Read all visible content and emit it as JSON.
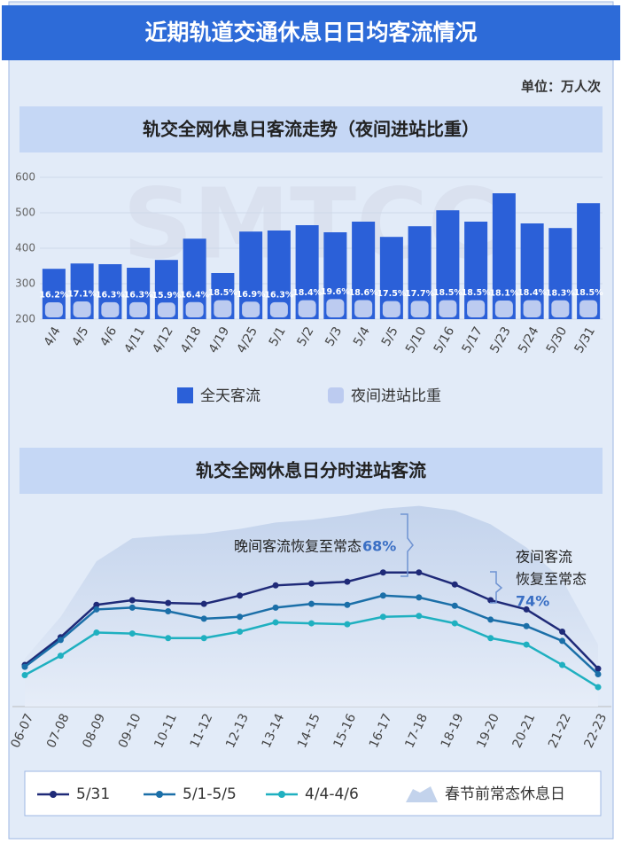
{
  "header": {
    "title": "近期轨道交通休息日日均客流情况",
    "unit": "单位：万人次",
    "watermark": "SMTCC"
  },
  "chart_data": [
    {
      "type": "bar",
      "title": "轨交全网休息日客流走势（夜间进站比重）",
      "categories": [
        "4/4",
        "4/5",
        "4/6",
        "4/11",
        "4/12",
        "4/18",
        "4/19",
        "4/25",
        "5/1",
        "5/2",
        "5/3",
        "5/4",
        "5/5",
        "5/10",
        "5/16",
        "5/17",
        "5/23",
        "5/24",
        "5/30",
        "5/31"
      ],
      "series": [
        {
          "name": "全天客流",
          "color": "#2b60d8",
          "values": [
            342,
            357,
            355,
            345,
            367,
            427,
            330,
            447,
            450,
            465,
            445,
            475,
            432,
            462,
            507,
            475,
            555,
            470,
            457,
            527
          ]
        },
        {
          "name": "夜间进站比重",
          "color": "#bccbf0",
          "values": [
            16.2,
            17.1,
            16.3,
            16.3,
            15.9,
            16.4,
            18.5,
            16.9,
            16.3,
            18.4,
            19.6,
            18.6,
            17.5,
            17.7,
            18.5,
            18.5,
            18.1,
            18.4,
            18.3,
            18.5
          ],
          "value_labels": [
            "16.2%",
            "17.1%",
            "16.3%",
            "16.3%",
            "15.9%",
            "16.4%",
            "18.5%",
            "16.9%",
            "16.3%",
            "18.4%",
            "19.6%",
            "18.6%",
            "17.5%",
            "17.7%",
            "18.5%",
            "18.5%",
            "18.1%",
            "18.4%",
            "18.3%",
            "18.5%"
          ]
        }
      ],
      "ylim": [
        200,
        600
      ],
      "yticks": [
        200,
        300,
        400,
        500,
        600
      ],
      "grid": true
    },
    {
      "type": "line",
      "title": "轨交全网休息日分时进站客流",
      "categories": [
        "06-07",
        "07-08",
        "08-09",
        "09-10",
        "10-11",
        "11-12",
        "12-13",
        "13-14",
        "14-15",
        "15-16",
        "16-17",
        "17-18",
        "18-19",
        "19-20",
        "20-21",
        "21-22",
        "22-23"
      ],
      "series": [
        {
          "name": "5/31",
          "color": "#1f2a78",
          "values": [
            22.5,
            37.5,
            55,
            57.5,
            56,
            55.5,
            60,
            65.5,
            66.5,
            67.5,
            72.5,
            72.5,
            66,
            57.5,
            52.5,
            40.5,
            20.5
          ]
        },
        {
          "name": "5/1-5/5",
          "color": "#1b6fa8",
          "values": [
            21.5,
            36,
            52.5,
            53.5,
            51.5,
            47.5,
            48.5,
            53.5,
            55.5,
            55,
            60,
            59,
            54.5,
            47,
            43.5,
            35.5,
            17.5
          ]
        },
        {
          "name": "4/4-4/6",
          "color": "#1fb0c0",
          "values": [
            17,
            27.5,
            40,
            39.5,
            37,
            37,
            40.5,
            45.5,
            45,
            44.5,
            48.5,
            49,
            45,
            37,
            33.5,
            22.5,
            10.5
          ]
        },
        {
          "name": "春节前常态休息日",
          "color": "#c3d3ec",
          "area": true,
          "values": [
            26,
            48.5,
            78.5,
            91,
            92.5,
            93.5,
            96,
            99.5,
            101,
            103.5,
            107,
            108.5,
            106,
            98.5,
            86,
            68.5,
            33.5
          ]
        }
      ],
      "ylim": [
        0,
        115
      ],
      "annotations": [
        "晚间客流恢复至常态",
        "68%",
        "夜间客流",
        "恢复至常态",
        "74%"
      ]
    }
  ]
}
